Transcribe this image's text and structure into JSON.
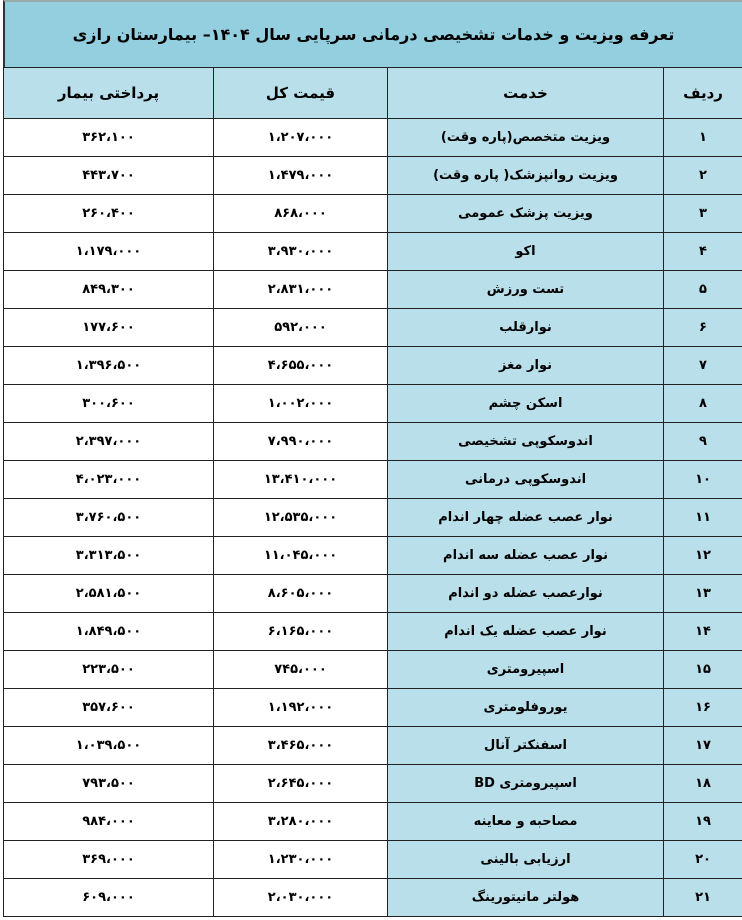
{
  "title": "تعرفه ویزیت و خدمات تشخیصی درمانی سرپایی سال ۱۴۰۴– بیمارستان رازی",
  "headers": {
    "row": "ردیف",
    "service": "خدمت",
    "total": "قیمت کل",
    "patient": "پرداختی بیمار"
  },
  "rows": [
    {
      "n": "۱",
      "service": "ویزیت متخصص(پاره وقت)",
      "total": "۱،۲۰۷،۰۰۰",
      "patient": "۳۶۲،۱۰۰"
    },
    {
      "n": "۲",
      "service": "ویزیت روانپزشک( پاره وقت)",
      "total": "۱،۴۷۹،۰۰۰",
      "patient": "۴۴۳،۷۰۰"
    },
    {
      "n": "۳",
      "service": "ویزیت پزشک عمومی",
      "total": "۸۶۸،۰۰۰",
      "patient": "۲۶۰،۴۰۰"
    },
    {
      "n": "۴",
      "service": "اکو",
      "total": "۳،۹۳۰،۰۰۰",
      "patient": "۱،۱۷۹،۰۰۰"
    },
    {
      "n": "۵",
      "service": "تست ورزش",
      "total": "۲،۸۳۱،۰۰۰",
      "patient": "۸۴۹،۳۰۰"
    },
    {
      "n": "۶",
      "service": "نوارقلب",
      "total": "۵۹۲،۰۰۰",
      "patient": "۱۷۷،۶۰۰"
    },
    {
      "n": "۷",
      "service": "نوار مغز",
      "total": "۴،۶۵۵،۰۰۰",
      "patient": "۱،۳۹۶،۵۰۰"
    },
    {
      "n": "۸",
      "service": "اسکن چشم",
      "total": "۱،۰۰۲،۰۰۰",
      "patient": "۳۰۰،۶۰۰"
    },
    {
      "n": "۹",
      "service": "اندوسکوپی تشخیصی",
      "total": "۷،۹۹۰،۰۰۰",
      "patient": "۲،۳۹۷،۰۰۰"
    },
    {
      "n": "۱۰",
      "service": "اندوسکوپی درمانی",
      "total": "۱۳،۴۱۰،۰۰۰",
      "patient": "۴،۰۲۳،۰۰۰"
    },
    {
      "n": "۱۱",
      "service": "نوار عصب عضله چهار اندام",
      "total": "۱۲،۵۳۵،۰۰۰",
      "patient": "۳،۷۶۰،۵۰۰"
    },
    {
      "n": "۱۲",
      "service": "نوار عصب عضله سه اندام",
      "total": "۱۱،۰۴۵،۰۰۰",
      "patient": "۳،۳۱۳،۵۰۰"
    },
    {
      "n": "۱۳",
      "service": "نوارعصب عضله دو اندام",
      "total": "۸،۶۰۵،۰۰۰",
      "patient": "۲،۵۸۱،۵۰۰"
    },
    {
      "n": "۱۴",
      "service": "نوار عصب عضله یک اندام",
      "total": "۶،۱۶۵،۰۰۰",
      "patient": "۱،۸۴۹،۵۰۰"
    },
    {
      "n": "۱۵",
      "service": "اسپیرومتری",
      "total": "۷۴۵،۰۰۰",
      "patient": "۲۲۳،۵۰۰"
    },
    {
      "n": "۱۶",
      "service": "یوروفلومتری",
      "total": "۱،۱۹۲،۰۰۰",
      "patient": "۳۵۷،۶۰۰"
    },
    {
      "n": "۱۷",
      "service": "اسفنکتر آنال",
      "total": "۳،۴۶۵،۰۰۰",
      "patient": "۱،۰۳۹،۵۰۰"
    },
    {
      "n": "۱۸",
      "service": "اسپیرومتری BD",
      "total": "۲،۶۴۵،۰۰۰",
      "patient": "۷۹۳،۵۰۰"
    },
    {
      "n": "۱۹",
      "service": "مصاحبه و معاینه",
      "total": "۳،۲۸۰،۰۰۰",
      "patient": "۹۸۴،۰۰۰"
    },
    {
      "n": "۲۰",
      "service": "ارزیابی بالینی",
      "total": "۱،۲۳۰،۰۰۰",
      "patient": "۳۶۹،۰۰۰"
    },
    {
      "n": "۲۱",
      "service": "هولتر مانیتورینگ",
      "total": "۲،۰۳۰،۰۰۰",
      "patient": "۶۰۹،۰۰۰"
    }
  ]
}
